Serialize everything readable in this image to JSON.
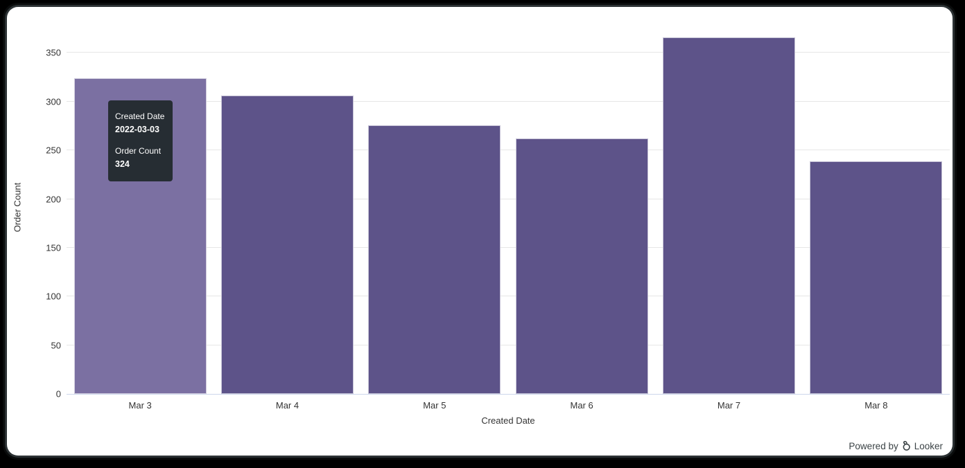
{
  "chart_data": {
    "type": "bar",
    "title": "",
    "categories": [
      "Mar 3",
      "Mar 4",
      "Mar 5",
      "Mar 6",
      "Mar 7",
      "Mar 8"
    ],
    "values": [
      324,
      306,
      276,
      262,
      366,
      239
    ],
    "xlabel": "Created Date",
    "ylabel": "Order Count",
    "ylim": [
      0,
      383
    ],
    "yticks": [
      0,
      50,
      100,
      150,
      200,
      250,
      300,
      350
    ],
    "grid": "horizontal",
    "legend": "none",
    "bar_color": "#5d5389",
    "bar_hover_color": "#7b70a2",
    "hovered_index": 0
  },
  "tooltip": {
    "field1_label": "Created Date",
    "field1_value": "2022-03-03",
    "field2_label": "Order Count",
    "field2_value": "324",
    "bg_color": "#262d33"
  },
  "footer": {
    "powered_by_label": "Powered by",
    "brand": "Looker"
  },
  "colors": {
    "frame_bg": "#000000",
    "panel_bg": "#ffffff",
    "grid_line": "#e6e6e6",
    "axis_line": "#ccd6eb",
    "label_text": "#333333"
  }
}
